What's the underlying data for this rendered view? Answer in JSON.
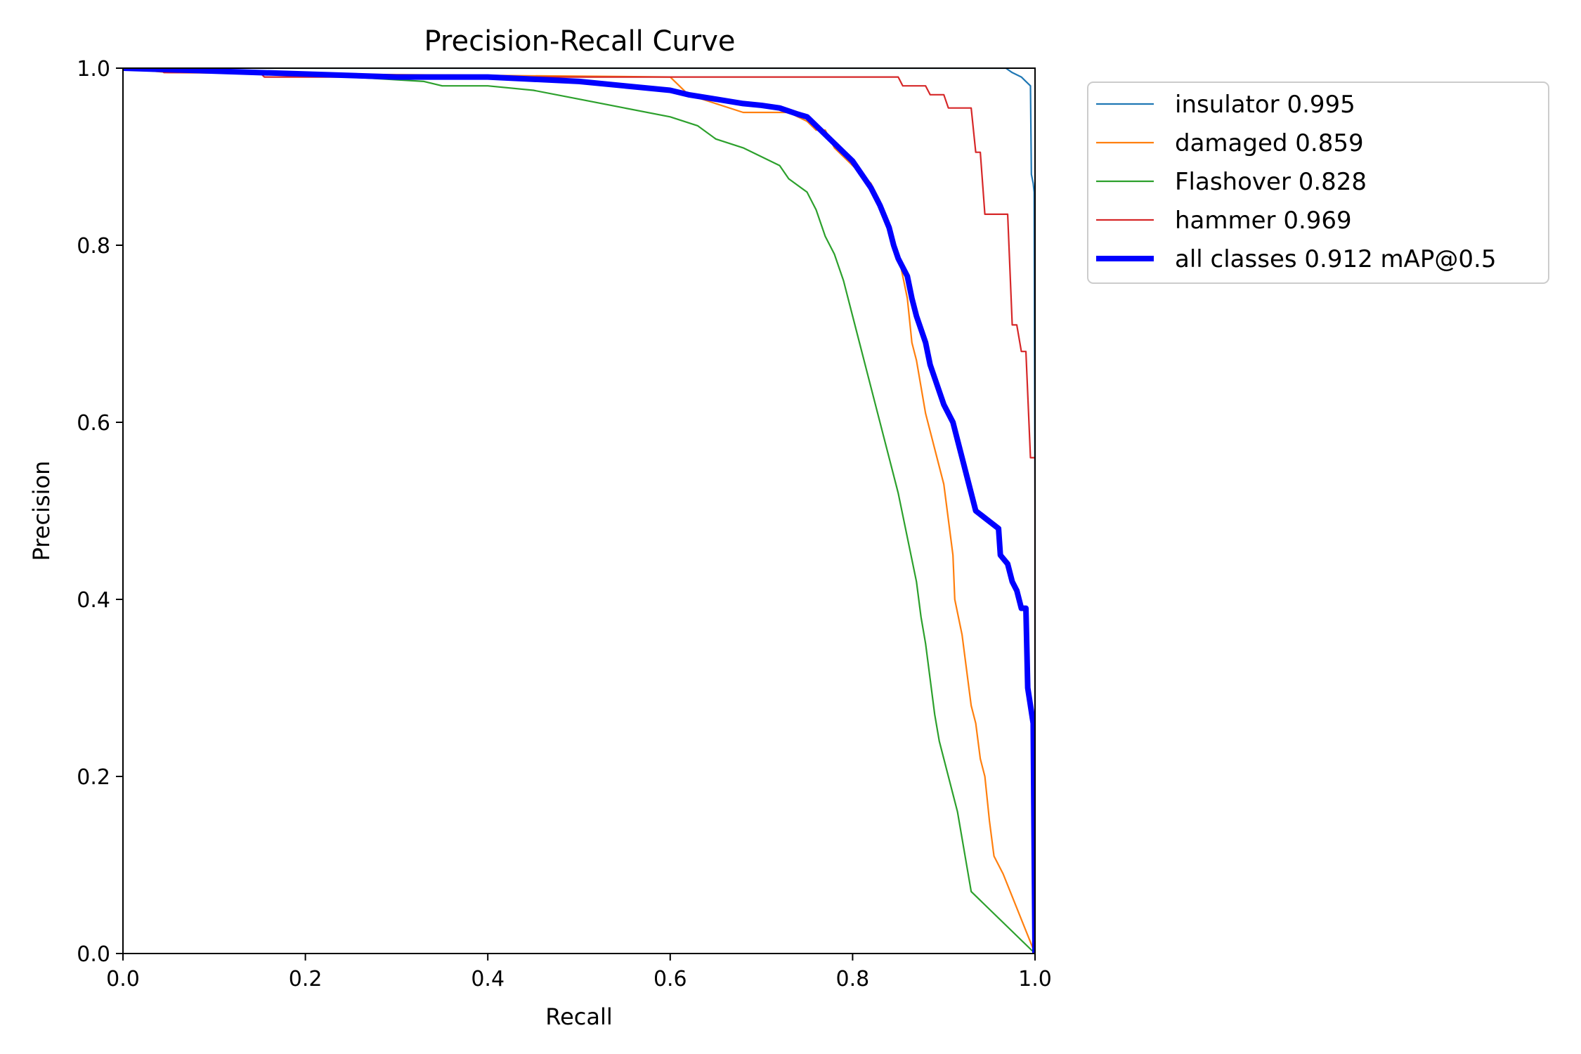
{
  "chart_data": {
    "type": "line",
    "title": "Precision-Recall Curve",
    "xlabel": "Recall",
    "ylabel": "Precision",
    "xlim": [
      0.0,
      1.0
    ],
    "ylim": [
      0.0,
      1.0
    ],
    "xticks": [
      "0.0",
      "0.2",
      "0.4",
      "0.6",
      "0.8",
      "1.0"
    ],
    "yticks": [
      "0.0",
      "0.2",
      "0.4",
      "0.6",
      "0.8",
      "1.0"
    ],
    "grid": false,
    "legend_position": "outside-top-right",
    "series": [
      {
        "name": "insulator 0.995",
        "color": "#1f77b4",
        "thick": false,
        "points": [
          [
            0,
            1
          ],
          [
            0.96,
            1
          ],
          [
            0.968,
            1
          ],
          [
            0.975,
            0.995
          ],
          [
            0.985,
            0.99
          ],
          [
            0.99,
            0.985
          ],
          [
            0.995,
            0.98
          ],
          [
            0.996,
            0.88
          ],
          [
            0.998,
            0.87
          ],
          [
            0.999,
            0.86
          ],
          [
            1.0,
            0.5
          ],
          [
            1.0,
            0.0
          ]
        ]
      },
      {
        "name": "damaged 0.859",
        "color": "#ff7f0e",
        "thick": false,
        "points": [
          [
            0,
            1
          ],
          [
            0.05,
            0.995
          ],
          [
            0.6,
            0.99
          ],
          [
            0.62,
            0.97
          ],
          [
            0.65,
            0.96
          ],
          [
            0.68,
            0.95
          ],
          [
            0.73,
            0.95
          ],
          [
            0.75,
            0.94
          ],
          [
            0.76,
            0.93
          ],
          [
            0.77,
            0.93
          ],
          [
            0.78,
            0.91
          ],
          [
            0.79,
            0.9
          ],
          [
            0.8,
            0.89
          ],
          [
            0.81,
            0.88
          ],
          [
            0.82,
            0.87
          ],
          [
            0.83,
            0.85
          ],
          [
            0.84,
            0.82
          ],
          [
            0.85,
            0.79
          ],
          [
            0.86,
            0.74
          ],
          [
            0.865,
            0.69
          ],
          [
            0.87,
            0.67
          ],
          [
            0.875,
            0.64
          ],
          [
            0.88,
            0.61
          ],
          [
            0.89,
            0.57
          ],
          [
            0.9,
            0.53
          ],
          [
            0.91,
            0.45
          ],
          [
            0.912,
            0.4
          ],
          [
            0.92,
            0.36
          ],
          [
            0.925,
            0.32
          ],
          [
            0.93,
            0.28
          ],
          [
            0.935,
            0.26
          ],
          [
            0.94,
            0.22
          ],
          [
            0.945,
            0.2
          ],
          [
            0.95,
            0.15
          ],
          [
            0.955,
            0.11
          ],
          [
            0.96,
            0.1
          ],
          [
            0.965,
            0.09
          ],
          [
            1.0,
            0.0
          ]
        ]
      },
      {
        "name": "Flashover 0.828",
        "color": "#2ca02c",
        "thick": false,
        "points": [
          [
            0,
            1
          ],
          [
            0.25,
            0.99
          ],
          [
            0.33,
            0.985
          ],
          [
            0.35,
            0.98
          ],
          [
            0.4,
            0.98
          ],
          [
            0.45,
            0.975
          ],
          [
            0.5,
            0.965
          ],
          [
            0.55,
            0.955
          ],
          [
            0.6,
            0.945
          ],
          [
            0.63,
            0.935
          ],
          [
            0.65,
            0.92
          ],
          [
            0.68,
            0.91
          ],
          [
            0.7,
            0.9
          ],
          [
            0.72,
            0.89
          ],
          [
            0.73,
            0.875
          ],
          [
            0.75,
            0.86
          ],
          [
            0.76,
            0.84
          ],
          [
            0.77,
            0.81
          ],
          [
            0.78,
            0.79
          ],
          [
            0.79,
            0.76
          ],
          [
            0.8,
            0.72
          ],
          [
            0.81,
            0.68
          ],
          [
            0.82,
            0.64
          ],
          [
            0.83,
            0.6
          ],
          [
            0.84,
            0.56
          ],
          [
            0.85,
            0.52
          ],
          [
            0.86,
            0.47
          ],
          [
            0.87,
            0.42
          ],
          [
            0.875,
            0.38
          ],
          [
            0.88,
            0.35
          ],
          [
            0.885,
            0.31
          ],
          [
            0.89,
            0.27
          ],
          [
            0.895,
            0.24
          ],
          [
            0.9,
            0.22
          ],
          [
            0.905,
            0.2
          ],
          [
            0.91,
            0.18
          ],
          [
            0.915,
            0.16
          ],
          [
            0.92,
            0.13
          ],
          [
            0.925,
            0.1
          ],
          [
            0.93,
            0.07
          ],
          [
            1.0,
            0.0
          ]
        ]
      },
      {
        "name": "hammer 0.969",
        "color": "#d62728",
        "thick": false,
        "points": [
          [
            0,
            1
          ],
          [
            0.04,
            1
          ],
          [
            0.045,
            0.995
          ],
          [
            0.15,
            0.995
          ],
          [
            0.155,
            0.99
          ],
          [
            0.85,
            0.99
          ],
          [
            0.855,
            0.98
          ],
          [
            0.88,
            0.98
          ],
          [
            0.885,
            0.97
          ],
          [
            0.9,
            0.97
          ],
          [
            0.905,
            0.955
          ],
          [
            0.93,
            0.955
          ],
          [
            0.935,
            0.905
          ],
          [
            0.94,
            0.905
          ],
          [
            0.945,
            0.835
          ],
          [
            0.97,
            0.835
          ],
          [
            0.975,
            0.71
          ],
          [
            0.98,
            0.71
          ],
          [
            0.985,
            0.68
          ],
          [
            0.99,
            0.68
          ],
          [
            0.995,
            0.56
          ],
          [
            1.0,
            0.56
          ],
          [
            1.0,
            0.19
          ],
          [
            1.0,
            0.0
          ]
        ]
      },
      {
        "name": "all classes 0.912 mAP@0.5",
        "color": "#0000ff",
        "thick": true,
        "points": [
          [
            0,
            1
          ],
          [
            0.3,
            0.99
          ],
          [
            0.4,
            0.99
          ],
          [
            0.5,
            0.985
          ],
          [
            0.55,
            0.98
          ],
          [
            0.6,
            0.975
          ],
          [
            0.62,
            0.97
          ],
          [
            0.65,
            0.965
          ],
          [
            0.68,
            0.96
          ],
          [
            0.7,
            0.958
          ],
          [
            0.72,
            0.955
          ],
          [
            0.74,
            0.948
          ],
          [
            0.75,
            0.945
          ],
          [
            0.76,
            0.935
          ],
          [
            0.77,
            0.925
          ],
          [
            0.78,
            0.915
          ],
          [
            0.79,
            0.905
          ],
          [
            0.8,
            0.895
          ],
          [
            0.81,
            0.88
          ],
          [
            0.82,
            0.865
          ],
          [
            0.83,
            0.845
          ],
          [
            0.84,
            0.82
          ],
          [
            0.845,
            0.8
          ],
          [
            0.85,
            0.785
          ],
          [
            0.86,
            0.765
          ],
          [
            0.865,
            0.74
          ],
          [
            0.87,
            0.72
          ],
          [
            0.88,
            0.69
          ],
          [
            0.885,
            0.665
          ],
          [
            0.89,
            0.65
          ],
          [
            0.9,
            0.62
          ],
          [
            0.91,
            0.6
          ],
          [
            0.915,
            0.58
          ],
          [
            0.92,
            0.56
          ],
          [
            0.925,
            0.54
          ],
          [
            0.93,
            0.52
          ],
          [
            0.935,
            0.5
          ],
          [
            0.96,
            0.48
          ],
          [
            0.962,
            0.45
          ],
          [
            0.97,
            0.44
          ],
          [
            0.975,
            0.42
          ],
          [
            0.98,
            0.41
          ],
          [
            0.985,
            0.39
          ],
          [
            0.99,
            0.39
          ],
          [
            0.992,
            0.3
          ],
          [
            0.995,
            0.28
          ],
          [
            0.998,
            0.26
          ],
          [
            1.0,
            0.0
          ]
        ]
      }
    ]
  }
}
